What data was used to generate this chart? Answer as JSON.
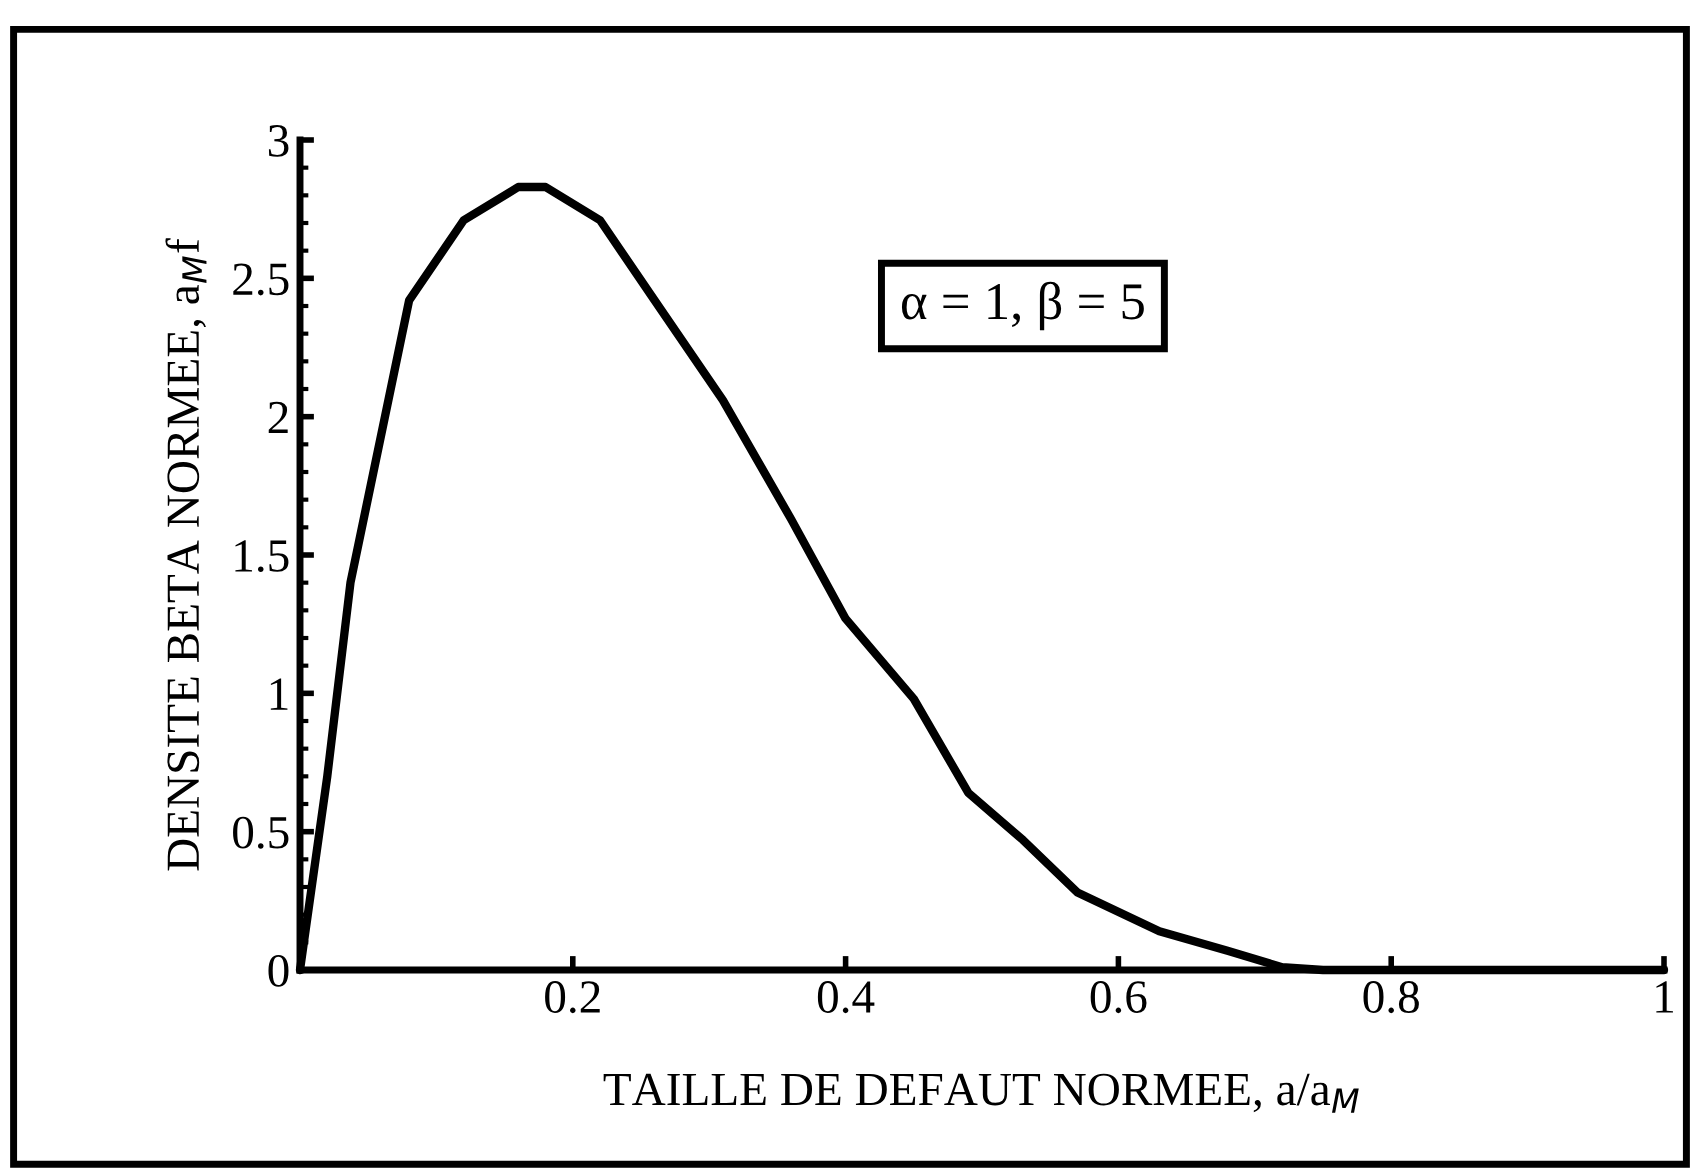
{
  "chart_data": {
    "type": "line",
    "xlabel": "TAILLE DE DEFAUT NORMEE, a/a$_{M}$",
    "ylabel": "DENSITE BETA NORMEE, a$_{M}$f",
    "annotations": [
      "α = 1, β = 5"
    ],
    "x": [
      0,
      0.02,
      0.037,
      0.08,
      0.12,
      0.16,
      0.18,
      0.22,
      0.26,
      0.31,
      0.36,
      0.4,
      0.45,
      0.49,
      0.53,
      0.57,
      0.63,
      0.68,
      0.72,
      0.75,
      0.85,
      1
    ],
    "series": [
      {
        "color": "#000000",
        "values": [
          0,
          0.7,
          1.4,
          2.42,
          2.71,
          2.83,
          2.83,
          2.71,
          2.42,
          2.06,
          1.63,
          1.27,
          0.98,
          0.64,
          0.47,
          0.28,
          0.14,
          0.07,
          0.01,
          0,
          0,
          0
        ]
      }
    ],
    "xlim": [
      0,
      1
    ],
    "ylim": [
      0,
      3
    ],
    "xticks": [
      {
        "value": 0,
        "label": null
      },
      0.2,
      0.4,
      0.6,
      0.8,
      1
    ],
    "yticks": [
      0,
      0.5,
      1,
      1.5,
      2,
      2.5,
      3
    ],
    "grid": false,
    "legend": false,
    "marker": "none",
    "line_style": "solid"
  }
}
